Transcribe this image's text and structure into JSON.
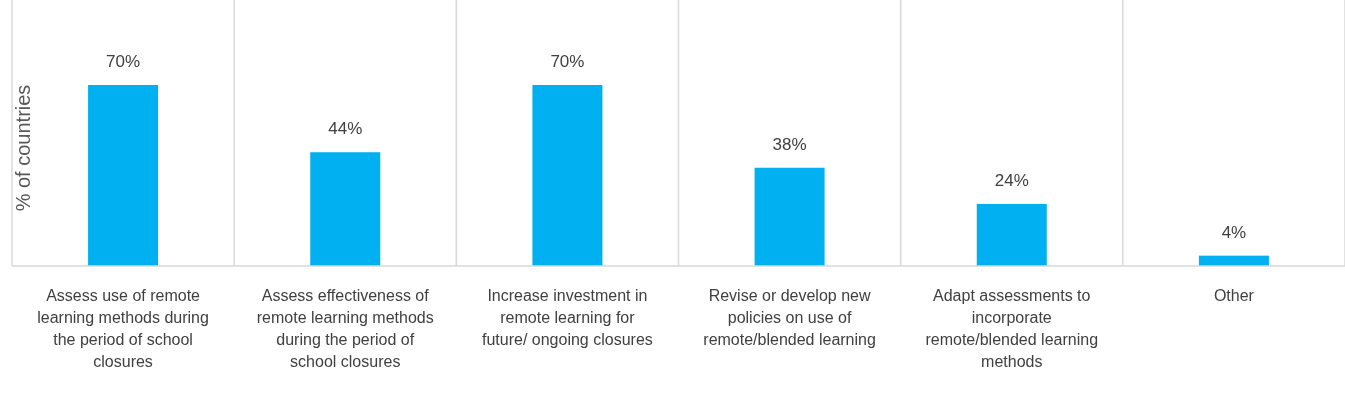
{
  "chart_data": {
    "type": "bar",
    "ylabel": "% of countries",
    "categories": [
      "Assess use of remote learning methods during the period of school closures",
      "Assess effectiveness of remote learning methods during the period of school closures",
      "Increase investment in remote learning for future/ ongoing closures",
      "Revise or develop new policies on use of remote/blended learning",
      "Adapt assessments to incorporate remote/blended learning methods",
      "Other"
    ],
    "values": [
      70,
      44,
      70,
      38,
      24,
      4
    ],
    "value_labels": [
      "70%",
      "44%",
      "70%",
      "38%",
      "24%",
      "4%"
    ],
    "color": "#00b0f0",
    "grid": "x"
  }
}
